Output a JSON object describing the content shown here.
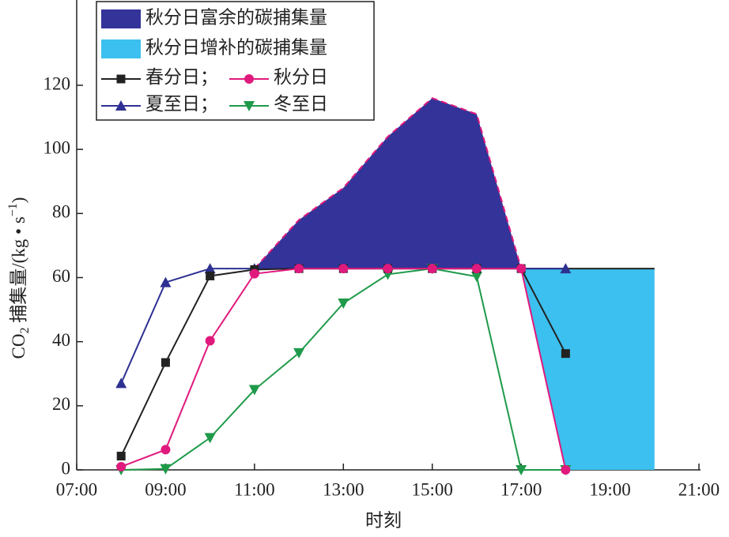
{
  "chart_data": {
    "type": "line",
    "x_label": "时刻",
    "y_label_parts": [
      "CO",
      "2",
      " 捕集量/(kg • s",
      "−1",
      ")"
    ],
    "xlim": [
      7,
      21
    ],
    "xticks": [
      {
        "value": 7,
        "label": "07:00"
      },
      {
        "value": 9,
        "label": "09:00"
      },
      {
        "value": 11,
        "label": "11:00"
      },
      {
        "value": 13,
        "label": "13:00"
      },
      {
        "value": 15,
        "label": "15:00"
      },
      {
        "value": 17,
        "label": "17:00"
      },
      {
        "value": 19,
        "label": "19:00"
      },
      {
        "value": 21,
        "label": "21:00"
      }
    ],
    "ylim": [
      0,
      120
    ],
    "yticks": [
      0,
      20,
      40,
      60,
      80,
      100,
      120
    ],
    "legend_separator": "；",
    "areas": [
      {
        "name": "秋分日富余的碳捕集量",
        "color": "#333399",
        "edge": "#e0197d",
        "x": [
          11,
          12,
          13,
          14,
          15,
          16,
          17
        ],
        "upper": [
          62.8,
          78,
          88,
          104,
          116,
          111,
          62.8
        ],
        "lower": [
          62.8,
          62.8,
          62.8,
          62.8,
          62.8,
          62.8,
          62.8
        ]
      },
      {
        "name": "秋分日增补的碳捕集量",
        "color": "#3cc0ef",
        "edge": "#222222",
        "x": [
          17,
          18,
          20
        ],
        "upper": [
          62.8,
          62.8,
          62.8
        ],
        "lower": [
          62.8,
          0,
          0
        ]
      }
    ],
    "series": [
      {
        "name": "夏至日",
        "color": "#2e3192",
        "marker": "triangle",
        "x": [
          8,
          9,
          10,
          11,
          18
        ],
        "values": [
          27,
          58.5,
          62.8,
          62.8,
          62.8
        ]
      },
      {
        "name": "冬至日",
        "color": "#1f9a4a",
        "marker": "down-triangle",
        "x": [
          8,
          9,
          10,
          11,
          12,
          13,
          14,
          15,
          16,
          17,
          18
        ],
        "values": [
          0,
          0.3,
          10,
          25,
          36.5,
          52,
          61,
          62.8,
          60.3,
          0,
          0
        ]
      },
      {
        "name": "春分日",
        "color": "#222222",
        "marker": "square",
        "x": [
          8,
          9,
          10,
          11,
          12,
          13,
          14,
          15,
          16,
          17,
          18
        ],
        "values": [
          4.3,
          33.5,
          60.5,
          62.5,
          62.8,
          62.8,
          62.8,
          62.8,
          62.8,
          62.8,
          36.3
        ]
      },
      {
        "name": "秋分日",
        "color": "#e0197d",
        "marker": "circle",
        "x": [
          8,
          9,
          10,
          11,
          12,
          13,
          14,
          15,
          16,
          17,
          18
        ],
        "values": [
          1,
          6.3,
          40.3,
          61.2,
          62.8,
          62.8,
          62.8,
          62.8,
          62.8,
          62.8,
          0
        ]
      }
    ]
  }
}
